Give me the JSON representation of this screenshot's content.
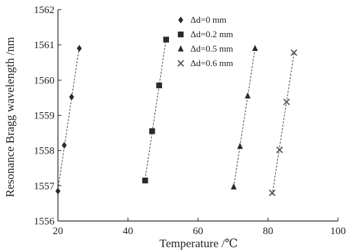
{
  "chart_data": {
    "type": "scatter",
    "xlabel": "Temperature /℃",
    "ylabel": "Resonance Bragg wavelength /nm",
    "xlim": [
      20,
      100
    ],
    "ylim": [
      1556,
      1562
    ],
    "xticks": [
      20,
      40,
      60,
      80,
      100
    ],
    "yticks": [
      1556,
      1557,
      1558,
      1559,
      1560,
      1561,
      1562
    ],
    "grid": false,
    "legend_position": "top-center",
    "series": [
      {
        "name": "Δd=0 mm",
        "marker": "diamond",
        "fit_line": true,
        "x": [
          20.0,
          21.8,
          23.9,
          26.1
        ],
        "y": [
          1556.85,
          1558.15,
          1559.52,
          1560.9
        ]
      },
      {
        "name": "Δd=0.2 mm",
        "marker": "square",
        "fit_line": true,
        "x": [
          44.9,
          46.9,
          48.9,
          50.9
        ],
        "y": [
          1557.15,
          1558.55,
          1559.85,
          1561.15
        ]
      },
      {
        "name": "Δd=0.5 mm",
        "marker": "triangle",
        "fit_line": true,
        "x": [
          70.2,
          72.0,
          74.2,
          76.3
        ],
        "y": [
          1556.97,
          1558.12,
          1559.55,
          1560.9
        ]
      },
      {
        "name": "Δd=0.6 mm",
        "marker": "cross",
        "fit_line": true,
        "x": [
          81.2,
          83.3,
          85.3,
          87.4
        ],
        "y": [
          1556.8,
          1558.02,
          1559.38,
          1560.78
        ]
      }
    ]
  }
}
